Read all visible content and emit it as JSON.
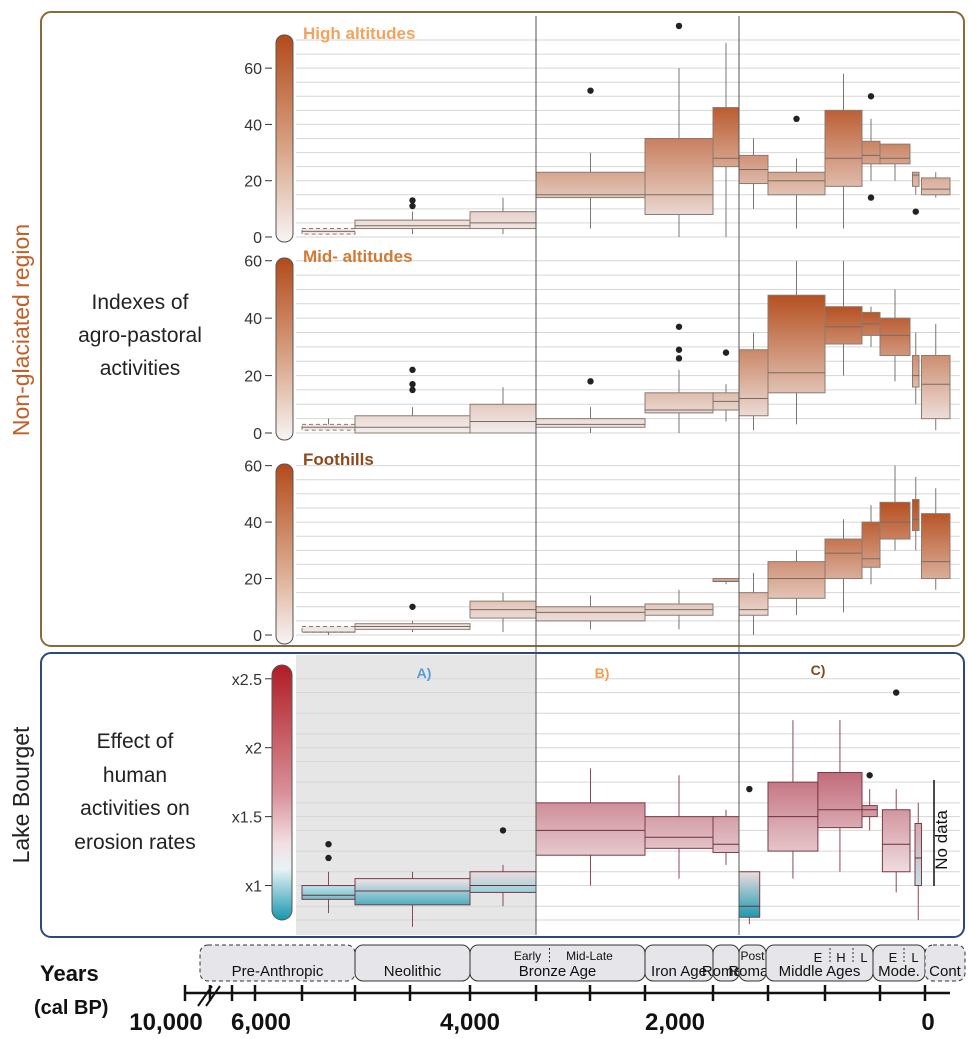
{
  "colors": {
    "nonglaciated_frame": "#8a6a3a",
    "bourget_frame": "#2b4a7a",
    "region_label": "#c0612a",
    "high_title": "#f2a35e",
    "mid_title": "#d07a35",
    "foot_title": "#8e4a1e",
    "brown_top": "#b6501f",
    "red_top": "#b02a2a",
    "blue_bottom": "#1a9bb0",
    "label_A": "#5b9bd5",
    "label_B": "#f0a050",
    "label_C": "#7a4a1e"
  },
  "labels": {
    "region_nonglaciated": "Non-glaciated region",
    "region_bourget": "Lake Bourget",
    "indexes_text": [
      "Indexes of",
      "agro-pastoral",
      "activities"
    ],
    "effect_text": [
      "Effect of",
      "human",
      "activities on",
      "erosion rates"
    ],
    "years_title": "Years",
    "years_unit": "(cal BP)",
    "no_data": "No data"
  },
  "chart_data": [
    {
      "type": "box",
      "title": "High altitudes",
      "ylim": [
        0,
        70
      ],
      "yticks": [
        "0",
        "20",
        "40",
        "60"
      ],
      "boxes": [
        {
          "x0": 6000,
          "x1": 5300,
          "q1": 1,
          "med": 2,
          "q3": 3,
          "lo": 1,
          "hi": 3,
          "dashed": true
        },
        {
          "x0": 5300,
          "x1": 4250,
          "q1": 3,
          "med": 4,
          "q3": 6,
          "lo": 1,
          "hi": 9,
          "out": [
            11,
            13
          ]
        },
        {
          "x0": 4250,
          "x1": 3600,
          "q1": 3,
          "med": 5,
          "q3": 9,
          "lo": 1,
          "hi": 14
        },
        {
          "x0": 3600,
          "x1": 2600,
          "q1": 14,
          "med": 15,
          "q3": 23,
          "lo": 3,
          "hi": 30,
          "out": [
            52
          ]
        },
        {
          "x0": 2600,
          "x1": 2000,
          "q1": 8,
          "med": 15,
          "q3": 35,
          "lo": 0,
          "hi": 60,
          "out": [
            75
          ]
        },
        {
          "x0": 2000,
          "x1": 1750,
          "q1": 25,
          "med": 28,
          "q3": 46,
          "lo": 0,
          "hi": 69
        },
        {
          "x0": 1750,
          "x1": 1400,
          "q1": 19,
          "med": 24,
          "q3": 29,
          "lo": 10,
          "hi": 35
        },
        {
          "x0": 1400,
          "x1": 1000,
          "q1": 15,
          "med": 20,
          "q3": 23,
          "lo": 3,
          "hi": 28,
          "out": [
            42
          ]
        },
        {
          "x0": 1000,
          "x1": 750,
          "q1": 18,
          "med": 28,
          "q3": 45,
          "lo": 3,
          "hi": 58
        },
        {
          "x0": 750,
          "x1": 550,
          "q1": 26,
          "med": 29,
          "q3": 34,
          "lo": 20,
          "hi": 42,
          "out": [
            50,
            14
          ]
        },
        {
          "x0": 550,
          "x1": 300,
          "q1": 26,
          "med": 28,
          "q3": 33,
          "lo": 20,
          "hi": 33
        },
        {
          "x0": 250,
          "x1": 120,
          "q1": 18,
          "med": 22,
          "q3": 23,
          "lo": 15,
          "hi": 23,
          "out": [
            9
          ]
        },
        {
          "x0": 70,
          "x1": -100,
          "q1": 15,
          "med": 17,
          "q3": 21,
          "lo": 14,
          "hi": 23
        }
      ]
    },
    {
      "type": "box",
      "title": "Mid- altitudes",
      "ylim": [
        0,
        62
      ],
      "yticks": [
        "0",
        "20",
        "40",
        "60"
      ],
      "boxes": [
        {
          "x0": 6000,
          "x1": 5300,
          "q1": 1,
          "med": 2,
          "q3": 3,
          "lo": 1,
          "hi": 5,
          "dashed": true
        },
        {
          "x0": 5300,
          "x1": 4250,
          "q1": 0,
          "med": 2,
          "q3": 6,
          "lo": 0,
          "hi": 9,
          "out": [
            22,
            17,
            15
          ]
        },
        {
          "x0": 4250,
          "x1": 3600,
          "q1": 0,
          "med": 4,
          "q3": 10,
          "lo": 0,
          "hi": 16
        },
        {
          "x0": 3600,
          "x1": 2600,
          "q1": 2,
          "med": 3,
          "q3": 5,
          "lo": 0,
          "hi": 9,
          "out": [
            18
          ]
        },
        {
          "x0": 2600,
          "x1": 2000,
          "q1": 7,
          "med": 8,
          "q3": 14,
          "lo": 0,
          "hi": 22,
          "out": [
            37,
            29,
            26
          ]
        },
        {
          "x0": 2000,
          "x1": 1750,
          "q1": 8,
          "med": 11,
          "q3": 14,
          "lo": 4,
          "hi": 17,
          "out": [
            28
          ]
        },
        {
          "x0": 1750,
          "x1": 1400,
          "q1": 6,
          "med": 12,
          "q3": 29,
          "lo": 1,
          "hi": 35
        },
        {
          "x0": 1400,
          "x1": 1000,
          "q1": 14,
          "med": 21,
          "q3": 48,
          "lo": 3,
          "hi": 60
        },
        {
          "x0": 1000,
          "x1": 750,
          "q1": 31,
          "med": 37,
          "q3": 44,
          "lo": 20,
          "hi": 60
        },
        {
          "x0": 750,
          "x1": 550,
          "q1": 34,
          "med": 38,
          "q3": 42,
          "lo": 30,
          "hi": 44
        },
        {
          "x0": 550,
          "x1": 300,
          "q1": 27,
          "med": 34,
          "q3": 40,
          "lo": 18,
          "hi": 50
        },
        {
          "x0": 250,
          "x1": 120,
          "q1": 16,
          "med": 20,
          "q3": 27,
          "lo": 10,
          "hi": 35
        },
        {
          "x0": 70,
          "x1": -100,
          "q1": 5,
          "med": 17,
          "q3": 27,
          "lo": 1,
          "hi": 38
        }
      ]
    },
    {
      "type": "box",
      "title": "Foothills",
      "ylim": [
        0,
        62
      ],
      "yticks": [
        "0",
        "20",
        "40",
        "60"
      ],
      "boxes": [
        {
          "x0": 6000,
          "x1": 5300,
          "q1": 1,
          "med": 1,
          "q3": 3,
          "lo": 0,
          "hi": 3,
          "dashed": true
        },
        {
          "x0": 5300,
          "x1": 4250,
          "q1": 2,
          "med": 3,
          "q3": 4,
          "lo": 1,
          "hi": 5,
          "out": [
            10
          ]
        },
        {
          "x0": 4250,
          "x1": 3600,
          "q1": 6,
          "med": 9,
          "q3": 12,
          "lo": 1,
          "hi": 15
        },
        {
          "x0": 3600,
          "x1": 2600,
          "q1": 5,
          "med": 8,
          "q3": 10,
          "lo": 2,
          "hi": 14
        },
        {
          "x0": 2600,
          "x1": 2000,
          "q1": 7,
          "med": 9,
          "q3": 11,
          "lo": 2,
          "hi": 16
        },
        {
          "x0": 2000,
          "x1": 1750,
          "q1": 19,
          "med": 19,
          "q3": 20,
          "lo": 18,
          "hi": 20
        },
        {
          "x0": 1750,
          "x1": 1400,
          "q1": 7,
          "med": 9,
          "q3": 15,
          "lo": 0,
          "hi": 22
        },
        {
          "x0": 1400,
          "x1": 1000,
          "q1": 13,
          "med": 20,
          "q3": 26,
          "lo": 7,
          "hi": 30
        },
        {
          "x0": 1000,
          "x1": 750,
          "q1": 20,
          "med": 29,
          "q3": 34,
          "lo": 8,
          "hi": 41
        },
        {
          "x0": 750,
          "x1": 550,
          "q1": 24,
          "med": 27,
          "q3": 40,
          "lo": 18,
          "hi": 46
        },
        {
          "x0": 550,
          "x1": 300,
          "q1": 34,
          "med": 40,
          "q3": 47,
          "lo": 30,
          "hi": 60
        },
        {
          "x0": 250,
          "x1": 120,
          "q1": 37,
          "med": 41,
          "q3": 48,
          "lo": 30,
          "hi": 56
        },
        {
          "x0": 70,
          "x1": -100,
          "q1": 20,
          "med": 26,
          "q3": 43,
          "lo": 16,
          "hi": 52
        }
      ]
    },
    {
      "type": "box",
      "title": "",
      "ylim": [
        0.75,
        2.6
      ],
      "yticks": [
        "x1",
        "x1.5",
        "x2",
        "x2.5"
      ],
      "ytick_values": [
        1,
        1.5,
        2,
        2.5
      ],
      "period_labels": [
        "A)",
        "B)",
        "C)"
      ],
      "boxes": [
        {
          "x0": 6000,
          "x1": 5300,
          "q1": 0.9,
          "med": 0.93,
          "q3": 1.0,
          "lo": 0.8,
          "hi": 1.1,
          "out": [
            1.3,
            1.2
          ]
        },
        {
          "x0": 5300,
          "x1": 4250,
          "q1": 0.86,
          "med": 0.96,
          "q3": 1.05,
          "lo": 0.7,
          "hi": 1.1
        },
        {
          "x0": 4250,
          "x1": 3600,
          "q1": 0.95,
          "med": 1.0,
          "q3": 1.1,
          "lo": 0.85,
          "hi": 1.15,
          "out": [
            1.4
          ]
        },
        {
          "x0": 3600,
          "x1": 2600,
          "q1": 1.22,
          "med": 1.4,
          "q3": 1.6,
          "lo": 1.0,
          "hi": 1.85
        },
        {
          "x0": 2600,
          "x1": 2000,
          "q1": 1.27,
          "med": 1.35,
          "q3": 1.5,
          "lo": 1.05,
          "hi": 1.8
        },
        {
          "x0": 2000,
          "x1": 1750,
          "q1": 1.24,
          "med": 1.3,
          "q3": 1.5,
          "lo": 1.15,
          "hi": 1.55
        },
        {
          "x0": 1750,
          "x1": 1500,
          "q1": 0.77,
          "med": 0.85,
          "q3": 1.1,
          "lo": 0.72,
          "hi": 1.1,
          "out": [
            1.7
          ]
        },
        {
          "x0": 1400,
          "x1": 1050,
          "q1": 1.25,
          "med": 1.5,
          "q3": 1.75,
          "lo": 1.05,
          "hi": 2.2
        },
        {
          "x0": 1050,
          "x1": 750,
          "q1": 1.42,
          "med": 1.55,
          "q3": 1.82,
          "lo": 1.1,
          "hi": 2.2
        },
        {
          "x0": 750,
          "x1": 580,
          "q1": 1.5,
          "med": 1.55,
          "q3": 1.58,
          "lo": 1.4,
          "hi": 1.7,
          "out": [
            1.8
          ]
        },
        {
          "x0": 530,
          "x1": 300,
          "q1": 1.1,
          "med": 1.3,
          "q3": 1.55,
          "lo": 0.95,
          "hi": 1.7,
          "out": [
            2.4
          ]
        },
        {
          "x0": 200,
          "x1": 70,
          "q1": 1.0,
          "med": 1.2,
          "q3": 1.45,
          "lo": 0.75,
          "hi": 1.6
        }
      ]
    }
  ],
  "periods": [
    {
      "label": "Pre-Anthropic",
      "dashed": true
    },
    {
      "label": "Neolithic"
    },
    {
      "label_top_left": "Early",
      "label_top_right": "Mid-Late",
      "label": "Bronze Age"
    },
    {
      "label": "Iron Age"
    },
    {
      "label": "Roman"
    },
    {
      "label_top": "Post",
      "label": "Roman"
    },
    {
      "sub": [
        "E",
        "H",
        "L"
      ],
      "label": "Middle Ages"
    },
    {
      "sub": [
        "E",
        "L"
      ],
      "label": "Mode."
    },
    {
      "label": "Cont",
      "dashed": true
    }
  ],
  "axis": {
    "tick_labels": [
      "10,000",
      "6,000",
      "4,000",
      "2,000",
      "0"
    ]
  }
}
